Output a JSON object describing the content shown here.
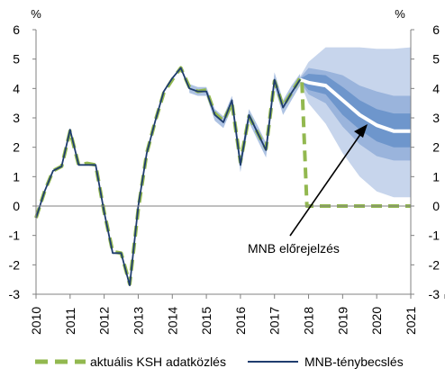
{
  "chart_data": {
    "type": "line",
    "unit_left": "%",
    "unit_right": "%",
    "ylim": [
      -3,
      6
    ],
    "yticks": [
      -3,
      -2,
      -1,
      0,
      1,
      2,
      3,
      4,
      5,
      6
    ],
    "xlim": [
      2010,
      2021
    ],
    "xticks": [
      "2010",
      "2011",
      "2012",
      "2013",
      "2014",
      "2015",
      "2016",
      "2017",
      "2018",
      "2019",
      "2020",
      "2021"
    ],
    "grid": false,
    "legend_placement": "bottom",
    "annotation": "MNB előrejelzés",
    "colors": {
      "ksh": "#92b84f",
      "mnb": "#1f3d6e",
      "fan_outer": "#c7d5ec",
      "fan_mid": "#9ab4dc",
      "fan_inner": "#6e96cc",
      "median": "#ffffff",
      "axis": "#808080"
    },
    "series": [
      {
        "name": "aktuális KSH adatközlés",
        "style": "dashed",
        "points": [
          [
            2010.0,
            -0.4
          ],
          [
            2010.25,
            0.5
          ],
          [
            2010.5,
            1.2
          ],
          [
            2010.75,
            1.35
          ],
          [
            2011.0,
            2.55
          ],
          [
            2011.25,
            1.4
          ],
          [
            2011.5,
            1.45
          ],
          [
            2011.75,
            1.4
          ],
          [
            2012.0,
            -0.2
          ],
          [
            2012.25,
            -1.55
          ],
          [
            2012.5,
            -1.6
          ],
          [
            2012.75,
            -2.65
          ],
          [
            2013.0,
            -0.1
          ],
          [
            2013.25,
            1.8
          ],
          [
            2013.5,
            2.9
          ],
          [
            2013.75,
            3.85
          ],
          [
            2014.0,
            4.3
          ],
          [
            2014.25,
            4.7
          ],
          [
            2014.5,
            4.05
          ],
          [
            2014.75,
            3.9
          ],
          [
            2015.0,
            3.95
          ],
          [
            2015.25,
            3.15
          ],
          [
            2015.5,
            2.9
          ],
          [
            2015.75,
            3.5
          ],
          [
            2016.0,
            1.5
          ],
          [
            2016.25,
            3.05
          ],
          [
            2016.5,
            2.5
          ],
          [
            2016.75,
            1.95
          ],
          [
            2017.0,
            4.25
          ],
          [
            2017.25,
            3.4
          ],
          [
            2017.5,
            3.85
          ],
          [
            2017.75,
            4.35
          ],
          [
            2017.8,
            4.35
          ],
          [
            2017.95,
            0.0
          ],
          [
            2021.0,
            0.0
          ]
        ]
      },
      {
        "name": "MNB-ténybecslés",
        "style": "solid",
        "points": [
          [
            2010.0,
            -0.4
          ],
          [
            2010.25,
            0.5
          ],
          [
            2010.5,
            1.2
          ],
          [
            2010.75,
            1.35
          ],
          [
            2011.0,
            2.6
          ],
          [
            2011.25,
            1.4
          ],
          [
            2011.5,
            1.4
          ],
          [
            2011.75,
            1.4
          ],
          [
            2012.0,
            -0.2
          ],
          [
            2012.25,
            -1.6
          ],
          [
            2012.5,
            -1.6
          ],
          [
            2012.75,
            -2.7
          ],
          [
            2013.0,
            0.0
          ],
          [
            2013.25,
            1.8
          ],
          [
            2013.5,
            2.9
          ],
          [
            2013.75,
            3.9
          ],
          [
            2014.0,
            4.35
          ],
          [
            2014.25,
            4.7
          ],
          [
            2014.5,
            4.0
          ],
          [
            2014.75,
            3.9
          ],
          [
            2015.0,
            3.9
          ],
          [
            2015.25,
            3.1
          ],
          [
            2015.5,
            2.85
          ],
          [
            2015.75,
            3.6
          ],
          [
            2016.0,
            1.4
          ],
          [
            2016.25,
            3.1
          ],
          [
            2016.5,
            2.5
          ],
          [
            2016.75,
            1.9
          ],
          [
            2017.0,
            4.3
          ],
          [
            2017.25,
            3.35
          ],
          [
            2017.5,
            3.85
          ],
          [
            2017.75,
            4.3
          ]
        ]
      }
    ],
    "band_history": {
      "x": [
        2014.5,
        2014.75,
        2015.0,
        2015.25,
        2015.5,
        2015.75,
        2016.0,
        2016.25,
        2016.5,
        2016.75,
        2017.0,
        2017.25,
        2017.5,
        2017.75
      ],
      "upper": [
        4.15,
        4.05,
        4.05,
        3.3,
        3.05,
        3.75,
        1.65,
        3.3,
        2.75,
        2.15,
        4.55,
        3.6,
        4.1,
        4.5
      ],
      "lower": [
        3.85,
        3.75,
        3.75,
        2.9,
        2.65,
        3.35,
        1.15,
        2.85,
        2.25,
        1.65,
        4.05,
        3.1,
        3.6,
        4.1
      ]
    },
    "fan_chart": {
      "x": [
        2017.75,
        2018.0,
        2018.5,
        2019.0,
        2019.5,
        2020.0,
        2020.5,
        2021.0
      ],
      "median": [
        4.3,
        4.2,
        4.1,
        3.6,
        3.1,
        2.75,
        2.55,
        2.55
      ],
      "band90": [
        [
          4.4,
          4.2
        ],
        [
          4.9,
          3.5
        ],
        [
          5.4,
          2.8
        ],
        [
          5.4,
          1.8
        ],
        [
          5.4,
          1.0
        ],
        [
          5.35,
          0.5
        ],
        [
          5.35,
          0.3
        ],
        [
          5.4,
          0.3
        ]
      ],
      "band60": [
        [
          4.35,
          4.25
        ],
        [
          4.7,
          3.8
        ],
        [
          4.6,
          3.5
        ],
        [
          4.45,
          2.7
        ],
        [
          4.1,
          2.1
        ],
        [
          3.9,
          1.7
        ],
        [
          3.75,
          1.55
        ],
        [
          3.75,
          1.55
        ]
      ],
      "band30": [
        [
          4.33,
          4.27
        ],
        [
          4.5,
          3.95
        ],
        [
          4.45,
          3.8
        ],
        [
          4.05,
          3.1
        ],
        [
          3.6,
          2.6
        ],
        [
          3.3,
          2.2
        ],
        [
          3.15,
          2.0
        ],
        [
          3.15,
          2.0
        ]
      ]
    }
  }
}
